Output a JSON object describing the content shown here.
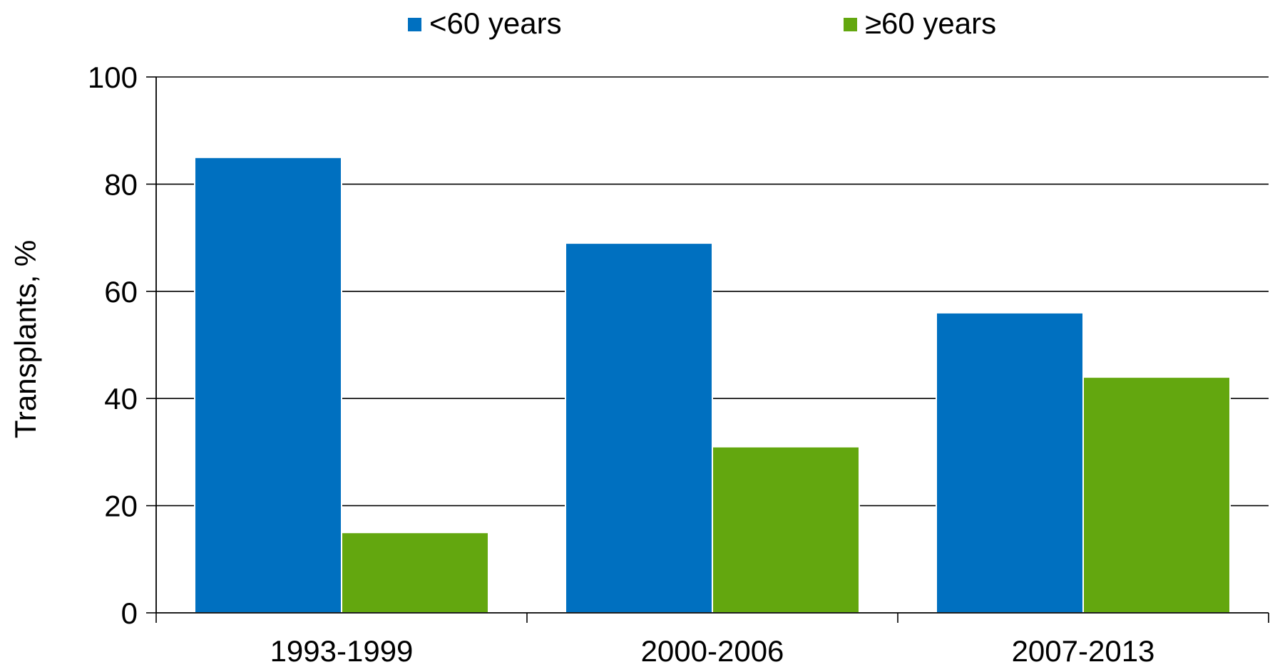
{
  "chart_data": {
    "type": "bar",
    "title": "",
    "xlabel": "",
    "ylabel": "Transplants, %",
    "ylim": [
      0,
      100
    ],
    "yticks": [
      0,
      20,
      40,
      60,
      80,
      100
    ],
    "grid": true,
    "legend_position": "top",
    "categories": [
      "1993-1999",
      "2000-2006",
      "2007-2013"
    ],
    "series": [
      {
        "name": "<60 years",
        "color": "#0070C0",
        "values": [
          85,
          69,
          56
        ]
      },
      {
        "name": "≥60 years",
        "color": "#63A70F",
        "values": [
          15,
          31,
          44
        ]
      }
    ]
  }
}
